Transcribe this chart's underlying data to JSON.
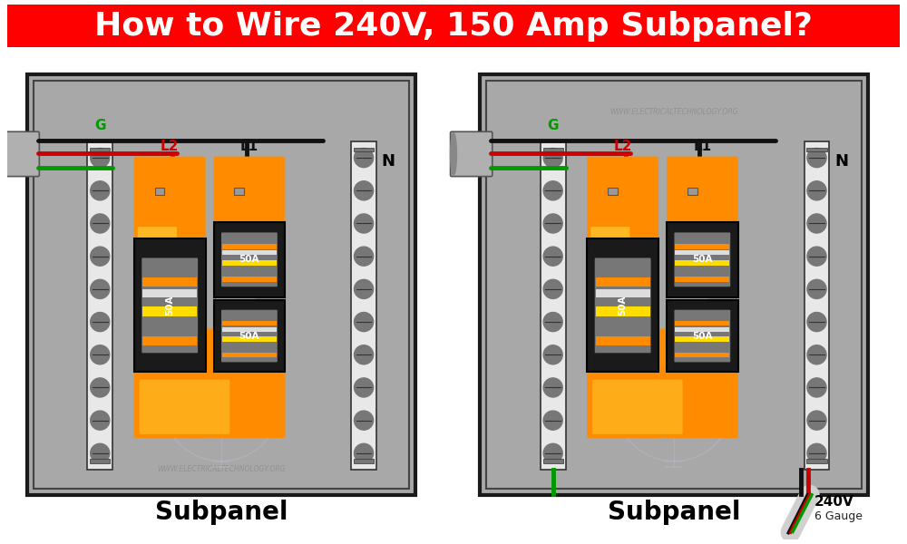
{
  "title": "How to Wire 240V, 150 Amp Subpanel?",
  "title_bg": "#FF0000",
  "title_color": "#FFFFFF",
  "title_fontsize": 26,
  "bg_color": "#FFFFFF",
  "panel_bg": "#A8A8A8",
  "panel_border": "#1a1a1a",
  "orange_main": "#FF8C00",
  "orange_light": "#FFCC33",
  "black_breaker": "#1a1a1a",
  "breaker_gray": "#666666",
  "wire_black": "#111111",
  "wire_red": "#CC0000",
  "wire_green": "#009900",
  "bus_white": "#E8E8E8",
  "bus_border": "#333333",
  "screw_color": "#777777",
  "conduit_color": "#B0B0B0",
  "conduit_end": "#888888",
  "label_L1": "L1",
  "label_L2": "L2",
  "label_G": "G",
  "label_N": "N",
  "label_50A": "50A",
  "label_sub": "Subpanel",
  "label_240v": "240V",
  "label_6gauge": "6 Gauge",
  "watermark": "WWW.ELECTRICALTECHNOLOGY.ORG",
  "footer_fontsize": 20,
  "cable_sheath": "#D0D0D0"
}
